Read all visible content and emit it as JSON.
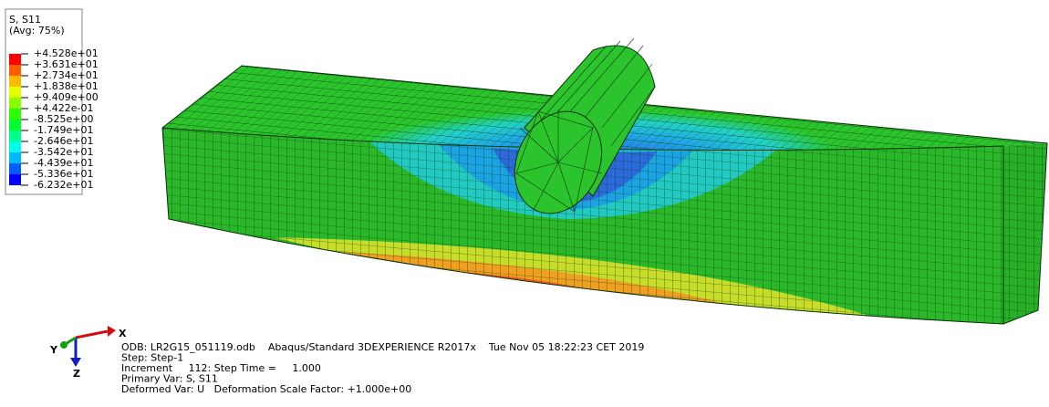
{
  "legend": {
    "title": "S, S11",
    "subtitle": "(Avg: 75%)",
    "labels": [
      "+4.528e+01",
      "+3.631e+01",
      "+2.734e+01",
      "+1.838e+01",
      "+9.409e+00",
      "+4.422e-01",
      "-8.525e+00",
      "-1.749e+01",
      "-2.646e+01",
      "-3.542e+01",
      "-4.439e+01",
      "-5.336e+01",
      "-6.232e+01"
    ],
    "colors": [
      "#ff0000",
      "#ff5d00",
      "#ffb900",
      "#e3ff00",
      "#8aff00",
      "#2eff00",
      "#00ff2e",
      "#00ff8b",
      "#00ffe8",
      "#00b9ff",
      "#005dff",
      "#0000ff"
    ]
  },
  "triad": {
    "x": "X",
    "y": "Y",
    "z": "Z"
  },
  "info": {
    "lines": [
      "ODB: LR2G15_051119.odb    Abaqus/Standard 3DEXPERIENCE R2017x    Tue Nov 05 18:22:23 CET 2019",
      "Step: Step-1",
      "Increment     112: Step Time =     1.000",
      "Primary Var: S, S11",
      "Deformed Var: U   Deformation Scale Factor: +1.000e+00"
    ]
  }
}
